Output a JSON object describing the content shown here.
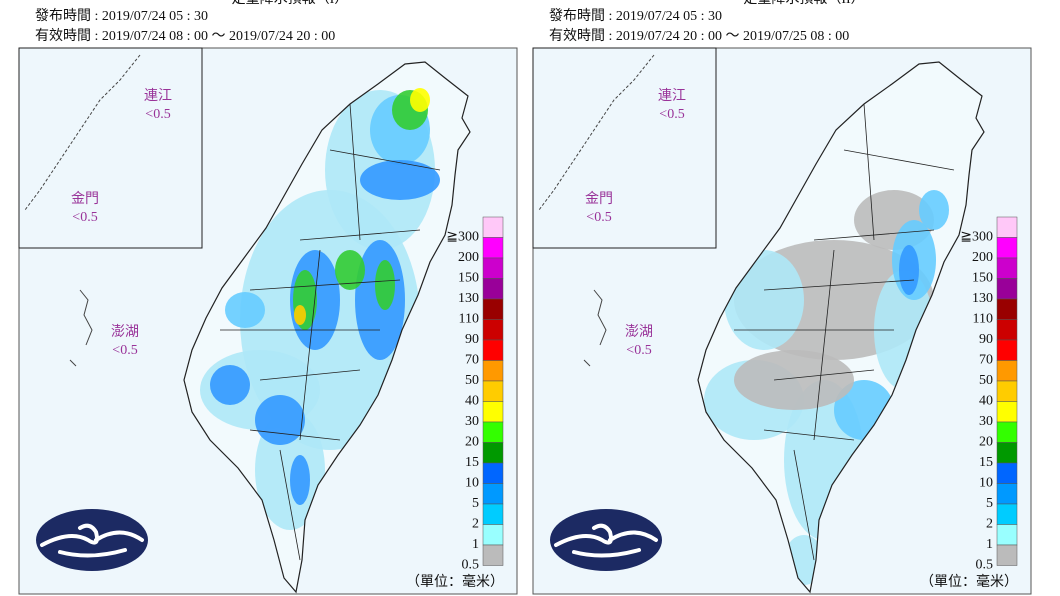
{
  "panels": [
    {
      "title": "定量降水預報（I）",
      "issued": "發布時間 : 2019/07/24 05 : 30",
      "valid": "有效時間 : 2019/07/24 08 : 00 ～ 2019/07/24 20 : 00",
      "islands": [
        {
          "name": "連江",
          "value": "<0.5"
        },
        {
          "name": "金門",
          "value": "<0.5"
        },
        {
          "name": "澎湖",
          "value": "<0.5"
        }
      ],
      "unit": "（單位：毫米）"
    },
    {
      "title": "定量降水預報（II）",
      "issued": "發布時間 : 2019/07/24 05 : 30",
      "valid": "有效時間 : 2019/07/24 20 : 00 ～ 2019/07/25 08 : 00",
      "islands": [
        {
          "name": "連江",
          "value": "<0.5"
        },
        {
          "name": "金門",
          "value": "<0.5"
        },
        {
          "name": "澎湖",
          "value": "<0.5"
        }
      ],
      "unit": "（單位：毫米）"
    }
  ],
  "legend": [
    {
      "label": "≧300",
      "color": "#ffc8f8"
    },
    {
      "label": "200",
      "color": "#ff00ff"
    },
    {
      "label": "150",
      "color": "#cc00cc"
    },
    {
      "label": "130",
      "color": "#990099"
    },
    {
      "label": "110",
      "color": "#990000"
    },
    {
      "label": "90",
      "color": "#cc0000"
    },
    {
      "label": "70",
      "color": "#ff0000"
    },
    {
      "label": "50",
      "color": "#ff9900"
    },
    {
      "label": "40",
      "color": "#ffcc00"
    },
    {
      "label": "30",
      "color": "#ffff00"
    },
    {
      "label": "20",
      "color": "#33ff00"
    },
    {
      "label": "15",
      "color": "#009900"
    },
    {
      "label": "10",
      "color": "#0066ff"
    },
    {
      "label": "5",
      "color": "#0099ff"
    },
    {
      "label": "2",
      "color": "#00ccff"
    },
    {
      "label": "1",
      "color": "#99ffff"
    },
    {
      "label": "0.5",
      "color": "#bbbbbb"
    }
  ]
}
